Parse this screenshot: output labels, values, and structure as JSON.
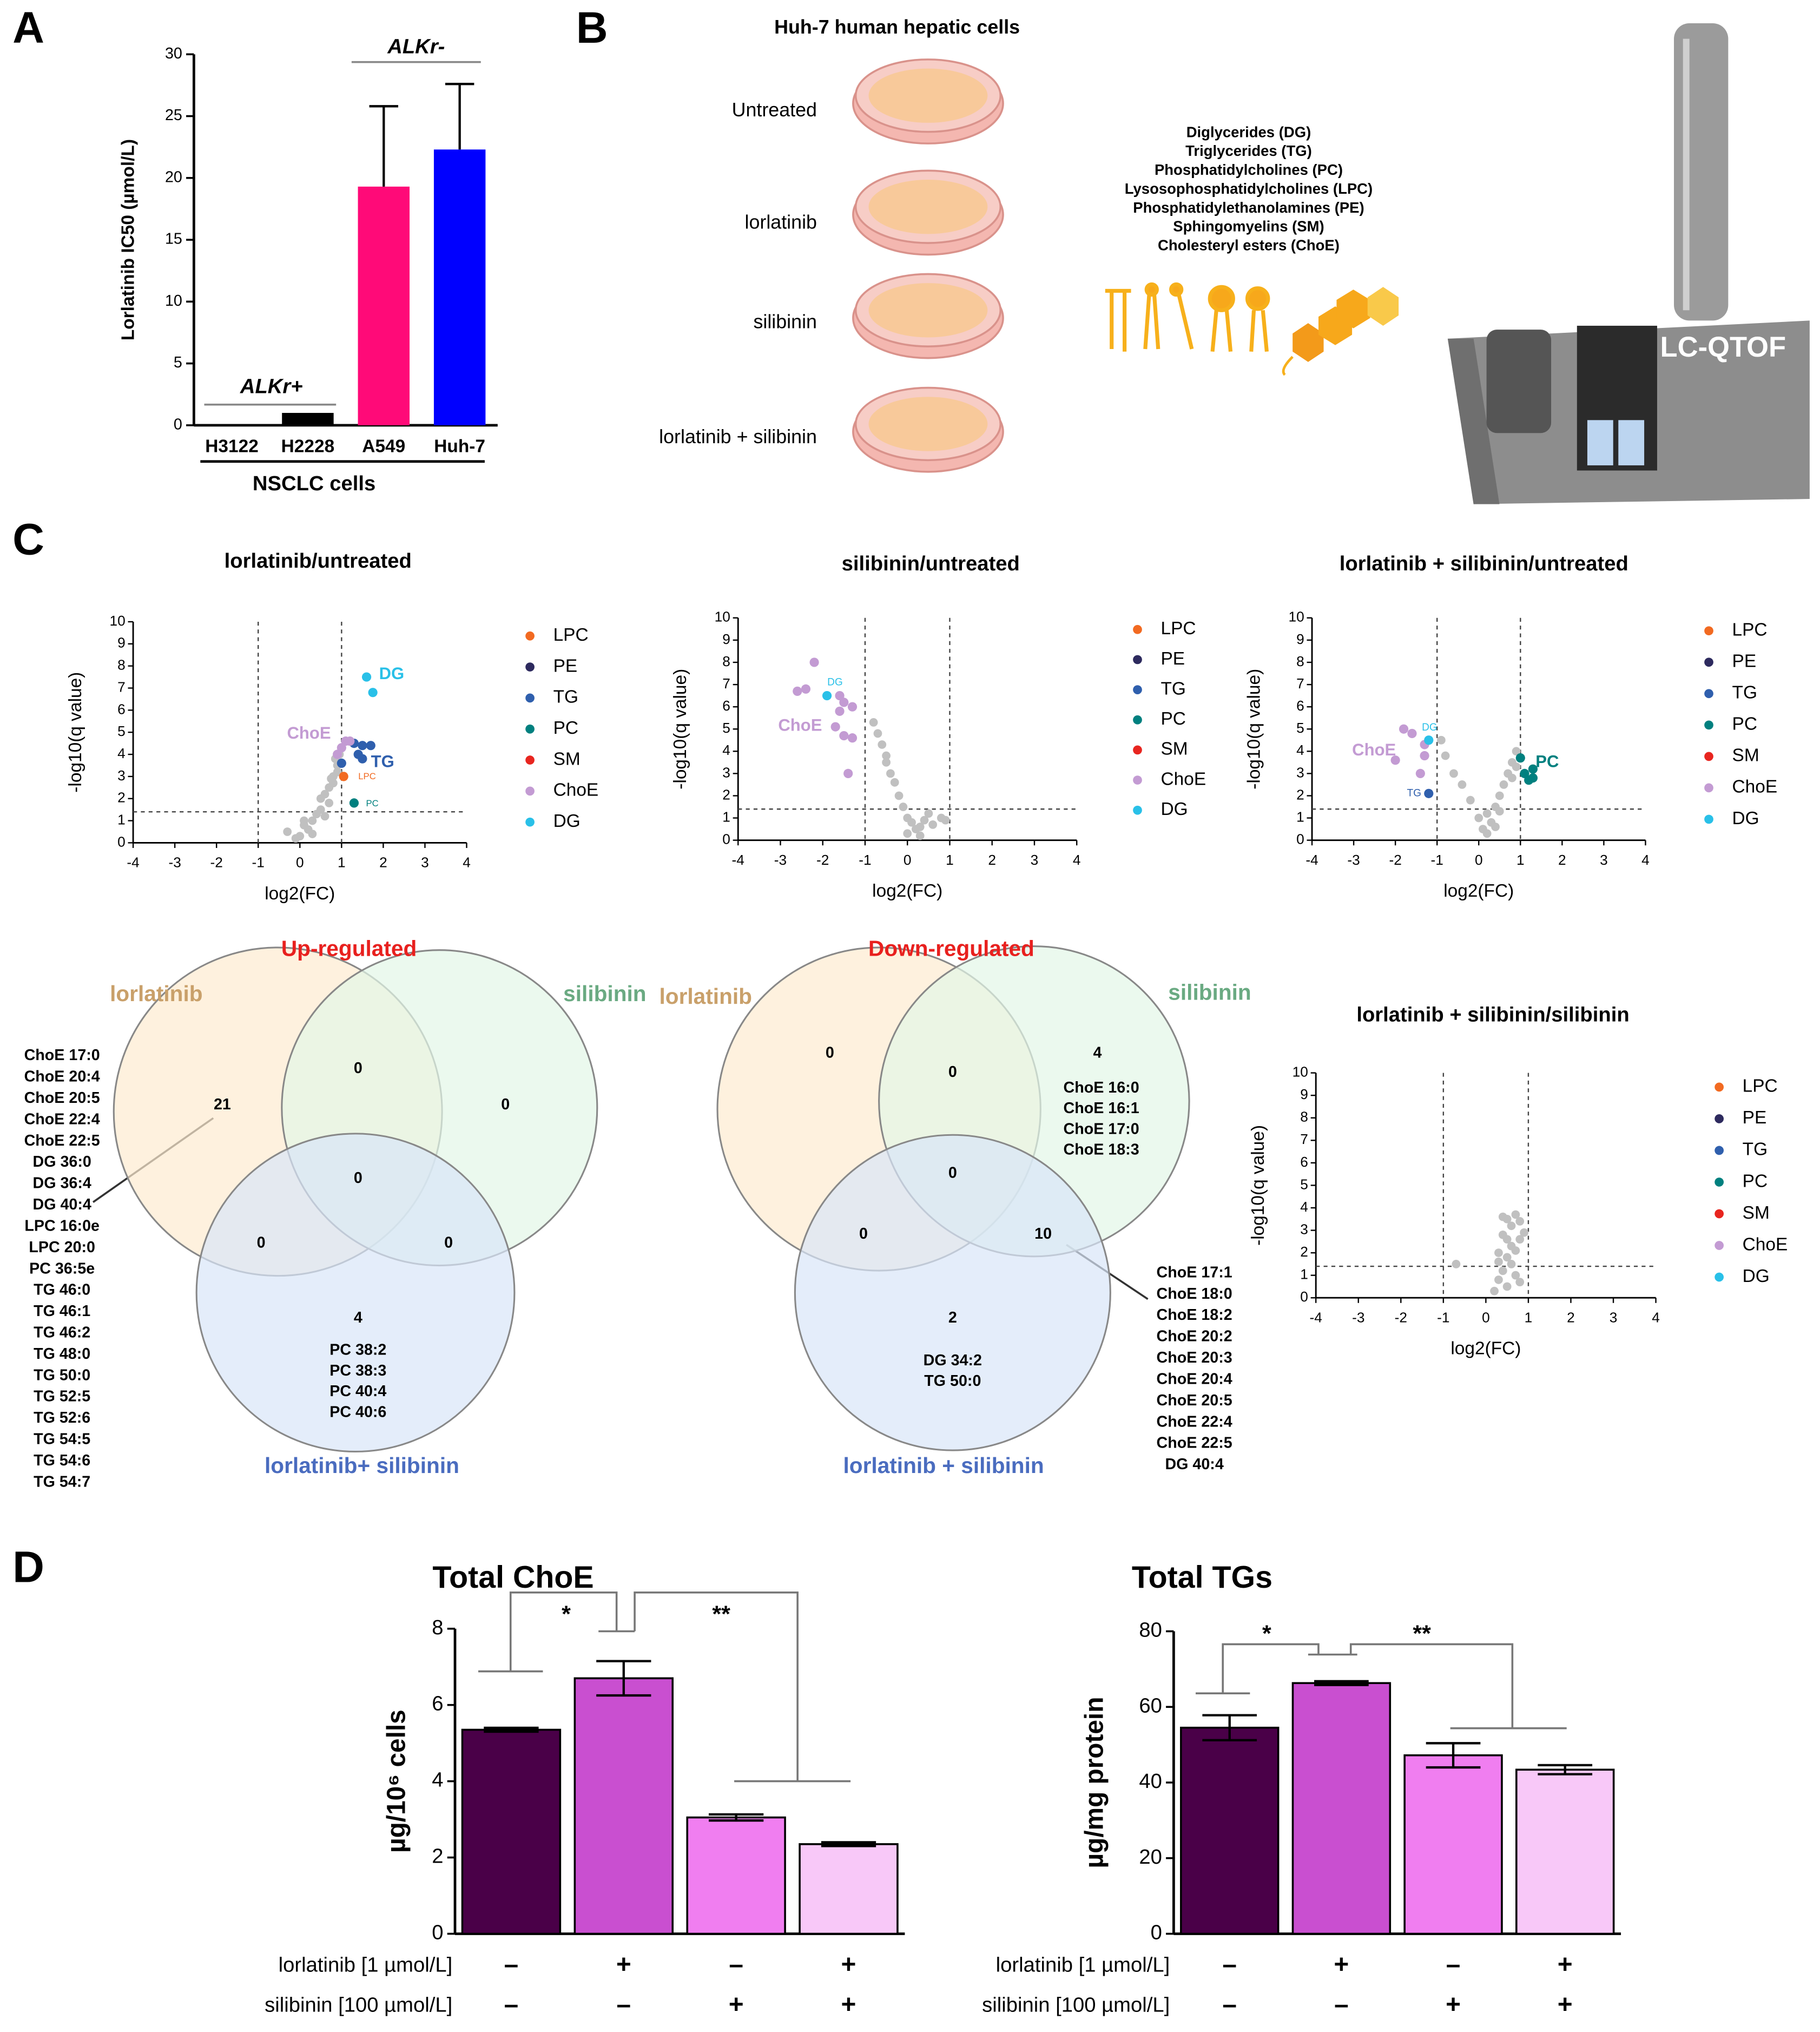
{
  "panel_labels": [
    "A",
    "B",
    "C",
    "D"
  ],
  "chart_data": [
    {
      "type": "bar",
      "ylabel": "Lorlatinib IC50 (µmol/L)",
      "categories": [
        "H3122",
        "H2228",
        "A549",
        "Huh-7"
      ],
      "values": [
        0,
        1,
        19.3,
        22.3
      ],
      "errors": [
        null,
        null,
        6.5,
        5.3
      ],
      "error_style": "up",
      "colors": [
        "#000000",
        "#000000",
        "#ff0a78",
        "#0000ff"
      ],
      "ylim": [
        0,
        30
      ],
      "yticks": [
        0,
        5,
        10,
        15,
        20,
        25,
        30
      ],
      "annotations": [
        "ALKr+",
        "ALKr-",
        "NSCLC cells"
      ]
    },
    {
      "type": "scatter",
      "title": "lorlatinib/untreated",
      "xlabel": "log2(FC)",
      "ylabel": "-log10(q value)",
      "xlim": [
        -4,
        4
      ],
      "xticks": [
        -4,
        -3,
        -2,
        -1,
        0,
        1,
        2,
        3,
        4
      ],
      "ylim": [
        0,
        10
      ],
      "yticks": [
        0,
        1,
        2,
        3,
        4,
        5,
        6,
        7,
        8,
        9,
        10
      ],
      "vlines": [
        -1,
        1
      ],
      "hline": 1.4,
      "other_points": {
        "color": "#c0c0c0",
        "x": [
          -0.3,
          -0.1,
          0,
          0.1,
          0.2,
          0.3,
          0.4,
          0.5,
          0.5,
          0.6,
          0.7,
          0.7,
          0.8,
          0.8,
          0.9,
          0.9,
          0.6,
          0.3,
          0.1,
          0.95,
          0.85,
          0.75
        ],
        "values": [
          0.5,
          0.2,
          0.3,
          0.8,
          0.6,
          1.0,
          1.3,
          1.5,
          2.0,
          2.2,
          2.5,
          1.8,
          3.0,
          2.7,
          3.5,
          3.2,
          1.2,
          0.4,
          1.0,
          4.0,
          3.8,
          2.9
        ]
      },
      "series": [
        {
          "name": "LPC",
          "color": "#f26a21",
          "x": [
            1.05
          ],
          "values": [
            3.0
          ]
        },
        {
          "name": "PE",
          "color": "#2d2a5e",
          "x": [],
          "values": []
        },
        {
          "name": "TG",
          "color": "#2f5fad",
          "x": [
            1.0,
            1.3,
            1.5,
            1.7,
            1.4,
            1.5
          ],
          "values": [
            3.6,
            4.5,
            4.4,
            4.4,
            4.0,
            3.8
          ]
        },
        {
          "name": "PC",
          "color": "#00807f",
          "x": [
            1.3
          ],
          "values": [
            1.8
          ]
        },
        {
          "name": "SM",
          "color": "#e8251f",
          "x": [],
          "values": []
        },
        {
          "name": "ChoE",
          "color": "#c39bd3",
          "x": [
            1.0,
            1.1,
            1.2,
            0.9
          ],
          "values": [
            4.3,
            4.6,
            4.6,
            4.0
          ]
        },
        {
          "name": "DG",
          "color": "#29c0e8",
          "x": [
            1.6,
            1.75
          ],
          "values": [
            7.5,
            6.8
          ]
        }
      ],
      "annotations": [
        "DG",
        "ChoE",
        "TG",
        "LPC",
        "PC"
      ]
    },
    {
      "type": "scatter",
      "title": "silibinin/untreated",
      "xlabel": "log2(FC)",
      "ylabel": "-log10(q value)",
      "xlim": [
        -4,
        4
      ],
      "xticks": [
        -4,
        -3,
        -2,
        -1,
        0,
        1,
        2,
        3,
        4
      ],
      "ylim": [
        0,
        10
      ],
      "yticks": [
        0,
        1,
        2,
        3,
        4,
        5,
        6,
        7,
        8,
        9,
        10
      ],
      "vlines": [
        -1,
        1
      ],
      "hline": 1.4,
      "other_points": {
        "color": "#c0c0c0",
        "x": [
          -0.8,
          -0.6,
          -0.5,
          -0.4,
          -0.3,
          -0.2,
          -0.1,
          0,
          0.1,
          0.2,
          0.3,
          0.4,
          0.5,
          0.6,
          0.8,
          0.9,
          -0.7,
          -0.5,
          0,
          0.3
        ],
        "values": [
          5.3,
          4.3,
          3.5,
          3.0,
          2.6,
          2.0,
          1.5,
          1.0,
          0.8,
          0.5,
          0.6,
          0.9,
          1.2,
          0.7,
          1.0,
          0.9,
          4.8,
          3.8,
          0.3,
          0.2
        ]
      },
      "series": [
        {
          "name": "LPC",
          "color": "#f26a21",
          "x": [],
          "values": []
        },
        {
          "name": "PE",
          "color": "#2d2a5e",
          "x": [],
          "values": []
        },
        {
          "name": "TG",
          "color": "#2f5fad",
          "x": [],
          "values": []
        },
        {
          "name": "PC",
          "color": "#00807f",
          "x": [],
          "values": []
        },
        {
          "name": "SM",
          "color": "#e8251f",
          "x": [],
          "values": []
        },
        {
          "name": "ChoE",
          "color": "#c39bd3",
          "x": [
            -2.2,
            -2.4,
            -2.6,
            -1.6,
            -1.5,
            -1.3,
            -1.6,
            -1.7,
            -1.5,
            -1.3,
            -1.4
          ],
          "values": [
            8.0,
            6.8,
            6.7,
            6.5,
            6.2,
            6.0,
            5.8,
            5.1,
            4.7,
            4.6,
            3.0
          ]
        },
        {
          "name": "DG",
          "color": "#29c0e8",
          "x": [
            -1.9
          ],
          "values": [
            6.5
          ]
        }
      ],
      "annotations": [
        "DG",
        "ChoE"
      ]
    },
    {
      "type": "scatter",
      "title": "lorlatinib + silibinin/untreated",
      "xlabel": "log2(FC)",
      "ylabel": "-log10(q value)",
      "xlim": [
        -4,
        4
      ],
      "xticks": [
        -4,
        -3,
        -2,
        -1,
        0,
        1,
        2,
        3,
        4
      ],
      "ylim": [
        0,
        10
      ],
      "yticks": [
        0,
        1,
        2,
        3,
        4,
        5,
        6,
        7,
        8,
        9,
        10
      ],
      "vlines": [
        -1,
        1
      ],
      "hline": 1.4,
      "other_points": {
        "color": "#c0c0c0",
        "x": [
          -0.9,
          -0.8,
          -0.6,
          -0.4,
          -0.2,
          0,
          0.1,
          0.2,
          0.3,
          0.4,
          0.5,
          0.5,
          0.6,
          0.7,
          0.8,
          0.8,
          0.9,
          0.9,
          0.2,
          0.4
        ],
        "values": [
          4.5,
          3.8,
          3.0,
          2.5,
          1.8,
          1.0,
          0.5,
          1.2,
          0.8,
          1.5,
          2.0,
          1.3,
          2.5,
          3.0,
          3.5,
          2.8,
          4.0,
          3.3,
          0.3,
          0.6
        ]
      },
      "series": [
        {
          "name": "LPC",
          "color": "#f26a21",
          "x": [],
          "values": []
        },
        {
          "name": "PE",
          "color": "#2d2a5e",
          "x": [],
          "values": []
        },
        {
          "name": "TG",
          "color": "#2f5fad",
          "x": [
            -1.2
          ],
          "values": [
            2.1
          ]
        },
        {
          "name": "PC",
          "color": "#00807f",
          "x": [
            1.0,
            1.1,
            1.2,
            1.3,
            1.3
          ],
          "values": [
            3.7,
            3.0,
            2.7,
            2.8,
            3.2
          ]
        },
        {
          "name": "SM",
          "color": "#e8251f",
          "x": [],
          "values": []
        },
        {
          "name": "ChoE",
          "color": "#c39bd3",
          "x": [
            -1.8,
            -1.6,
            -1.3,
            -2.0,
            -1.4,
            -1.3
          ],
          "values": [
            5.0,
            4.8,
            4.3,
            3.6,
            3.0,
            3.8
          ]
        },
        {
          "name": "DG",
          "color": "#29c0e8",
          "x": [
            -1.2
          ],
          "values": [
            4.5
          ]
        }
      ],
      "annotations": [
        "DG",
        "ChoE",
        "TG",
        "PC"
      ]
    },
    {
      "type": "scatter",
      "title": "lorlatinib + silibinin/silibinin",
      "xlabel": "log2(FC)",
      "ylabel": "-log10(q value)",
      "xlim": [
        -4,
        4
      ],
      "xticks": [
        -4,
        -3,
        -2,
        -1,
        0,
        1,
        2,
        3,
        4
      ],
      "ylim": [
        0,
        10
      ],
      "yticks": [
        0,
        1,
        2,
        3,
        4,
        5,
        6,
        7,
        8,
        9,
        10
      ],
      "vlines": [
        -1,
        1
      ],
      "hline": 1.4,
      "other_points": {
        "color": "#c0c0c0",
        "x": [
          -0.7,
          0.2,
          0.3,
          0.3,
          0.4,
          0.4,
          0.5,
          0.5,
          0.5,
          0.6,
          0.6,
          0.7,
          0.7,
          0.8,
          0.8,
          0.9,
          0.4,
          0.6,
          0.5,
          0.3,
          0.7,
          0.8
        ],
        "values": [
          1.5,
          0.3,
          0.8,
          2.0,
          1.2,
          2.8,
          0.5,
          1.8,
          3.5,
          2.3,
          3.2,
          1.0,
          3.7,
          2.6,
          3.4,
          2.9,
          3.6,
          1.5,
          2.6,
          1.6,
          2.1,
          0.7
        ]
      },
      "series": [
        {
          "name": "LPC",
          "color": "#f26a21",
          "x": [],
          "values": []
        },
        {
          "name": "PE",
          "color": "#2d2a5e",
          "x": [],
          "values": []
        },
        {
          "name": "TG",
          "color": "#2f5fad",
          "x": [],
          "values": []
        },
        {
          "name": "PC",
          "color": "#00807f",
          "x": [],
          "values": []
        },
        {
          "name": "SM",
          "color": "#e8251f",
          "x": [],
          "values": []
        },
        {
          "name": "ChoE",
          "color": "#c39bd3",
          "x": [],
          "values": []
        },
        {
          "name": "DG",
          "color": "#29c0e8",
          "x": [],
          "values": []
        }
      ],
      "annotations": []
    },
    {
      "type": "bar",
      "title": "Total ChoE",
      "ylabel": "µg/10⁶ cells",
      "values": [
        5.35,
        6.7,
        3.05,
        2.35
      ],
      "errors": [
        0.05,
        0.45,
        0.08,
        0.05
      ],
      "error_style": "both",
      "colors": [
        "#4a0048",
        "#c94fd0",
        "#f07ef0",
        "#f8c8f8"
      ],
      "ylim": [
        0,
        8
      ],
      "yticks": [
        0,
        2,
        4,
        6,
        8
      ],
      "rows": [
        {
          "label": "lorlatinib [1 µmol/L]",
          "marks": [
            "–",
            "+",
            "–",
            "+"
          ]
        },
        {
          "label": "silibinin [100 µmol/L]",
          "marks": [
            "–",
            "–",
            "+",
            "+"
          ]
        }
      ],
      "annotations": [
        "*",
        "**"
      ]
    },
    {
      "type": "bar",
      "title": "Total TGs",
      "ylabel": "µg/mg protein",
      "values": [
        54.5,
        66.3,
        47.2,
        43.4
      ],
      "errors": [
        3.3,
        0.5,
        3.2,
        1.2
      ],
      "error_style": "both",
      "colors": [
        "#4a0048",
        "#c94fd0",
        "#f07ef0",
        "#f8c8f8"
      ],
      "ylim": [
        0,
        80
      ],
      "yticks": [
        0,
        20,
        40,
        60,
        80
      ],
      "rows": [
        {
          "label": "lorlatinib [1 µmol/L]",
          "marks": [
            "–",
            "+",
            "–",
            "+"
          ]
        },
        {
          "label": "silibinin [100 µmol/L]",
          "marks": [
            "–",
            "–",
            "+",
            "+"
          ]
        }
      ],
      "annotations": [
        "*",
        "**"
      ]
    }
  ],
  "panel_b": {
    "title": "Huh-7 human hepatic cells",
    "conditions": [
      "Untreated",
      "lorlatinib",
      "silibinin",
      "lorlatinib + silibinin"
    ],
    "lipid_classes": [
      "Diglycerides (DG)",
      "Triglycerides (TG)",
      "Phosphatidylcholines (PC)",
      "Lysosophosphatidylcholines (LPC)",
      "Phosphatidylethanolamines (PE)",
      "Sphingomyelins (SM)",
      "Cholesteryl esters (ChoE)"
    ],
    "instrument": "LC-QTOF"
  },
  "venns": [
    {
      "title": "Up-regulated",
      "labels": [
        "lorlatinib",
        "silibinin",
        "lorlatinib+ silibinin"
      ],
      "counts": [
        "21",
        "0",
        "0",
        "0",
        "0",
        "0",
        "4"
      ],
      "lists": [
        [
          "ChoE 17:0",
          "ChoE 20:4",
          "ChoE 20:5",
          "ChoE 22:4",
          "ChoE 22:5",
          "DG 36:0",
          "DG 36:4",
          "DG 40:4",
          "LPC 16:0e",
          "LPC 20:0",
          "PC 36:5e",
          "TG 46:0",
          "TG 46:1",
          "TG 46:2",
          "TG 48:0",
          "TG 50:0",
          "TG 52:5",
          "TG 52:6",
          "TG 54:5",
          "TG 54:6",
          "TG 54:7"
        ],
        [
          "PC 38:2",
          "PC 38:3",
          "PC 40:4",
          "PC 40:6"
        ]
      ]
    },
    {
      "title": "Down-regulated",
      "labels": [
        "lorlatinib",
        "silibinin",
        "lorlatinib + silibinin"
      ],
      "counts": [
        "0",
        "0",
        "4",
        "0",
        "0",
        "10",
        "2"
      ],
      "lists": [
        [
          "ChoE 16:0",
          "ChoE 16:1",
          "ChoE 17:0",
          "ChoE 18:3"
        ],
        [
          "ChoE 17:1",
          "ChoE 18:0",
          "ChoE 18:2",
          "ChoE 20:2",
          "ChoE 20:3",
          "ChoE 20:4",
          "ChoE 20:5",
          "ChoE 22:4",
          "ChoE 22:5",
          "DG 40:4"
        ],
        [
          "DG 34:2",
          "TG 50:0"
        ]
      ]
    }
  ]
}
